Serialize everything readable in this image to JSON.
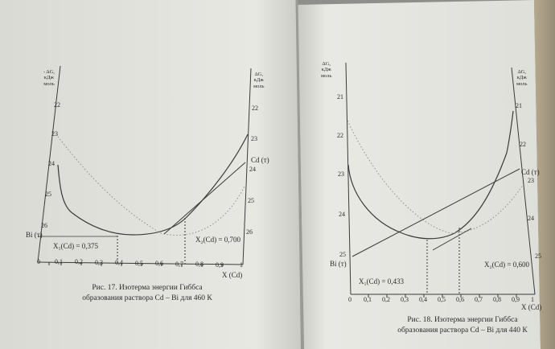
{
  "left_page": {
    "unit_left": [
      "- ΔG,",
      "кДж",
      "моль"
    ],
    "unit_right": [
      "ΔG,",
      "кДж",
      "моль"
    ],
    "y_ticks_left": [
      "22",
      "23",
      "24",
      "25",
      "26"
    ],
    "y_ticks_right": [
      "22",
      "23",
      "24",
      "25",
      "26"
    ],
    "x_ticks": [
      "0",
      "0,1",
      "0,2",
      "0,3",
      "0,4",
      "0,5",
      "0,6",
      "0,7",
      "0,8",
      "0,9",
      "1"
    ],
    "x_label": "X (Cd)",
    "bi_label": "Bi (т)",
    "cd_label": "Cd (т)",
    "x1_label": "X₁(Cd) = 0,375",
    "x2_label": "X₂(Cd) = 0,700",
    "caption": [
      "Рис. 17. Изотерма энергии Гиббса",
      "образования раствора Cd – Bi для 460 К"
    ]
  },
  "right_page": {
    "unit_left": [
      "ΔG,",
      "кДж",
      "моль"
    ],
    "unit_right": [
      "ΔG,",
      "кДж",
      "моль"
    ],
    "y_ticks_left": [
      "21",
      "22",
      "23",
      "24",
      "25"
    ],
    "y_ticks_right": [
      "21",
      "22",
      "23",
      "24",
      "25"
    ],
    "x_ticks": [
      "0",
      "0,1",
      "0,2",
      "0,3",
      "0,4",
      "0,5",
      "0,6",
      "0,7",
      "0,8",
      "0,9",
      "1"
    ],
    "x_label": "X (Cd)",
    "bi_label": "Bi (т)",
    "cd_label": "Cd (т)",
    "x1_label": "X₁(Cd) = 0,433",
    "x2_label": "X₂(Cd) = 0,600",
    "caption": [
      "Рис. 18. Изотерма энергии Гиббса",
      "образования раствора Cd – Bi для 440 К"
    ]
  }
}
